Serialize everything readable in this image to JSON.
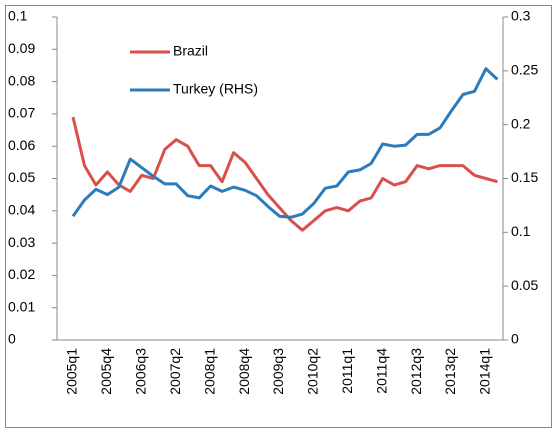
{
  "chart_data": {
    "type": "line",
    "categories": [
      "2005q1",
      null,
      null,
      "2005q4",
      null,
      null,
      "2006q3",
      null,
      null,
      "2007q2",
      null,
      null,
      "2008q1",
      null,
      null,
      "2008q4",
      null,
      null,
      "2009q3",
      null,
      null,
      "2010q2",
      null,
      null,
      "2011q1",
      null,
      null,
      "2011q4",
      null,
      null,
      "2012q3",
      null,
      null,
      "2013q2",
      null,
      null,
      "2014q1",
      null
    ],
    "series": [
      {
        "name": "Brazil",
        "color": "#d9504b",
        "values": [
          0.069,
          0.054,
          0.048,
          0.052,
          0.048,
          0.046,
          0.051,
          0.05,
          0.059,
          0.062,
          0.06,
          0.054,
          0.054,
          0.049,
          0.058,
          0.055,
          0.05,
          0.045,
          0.041,
          0.037,
          0.034,
          0.037,
          0.04,
          0.041,
          0.04,
          0.043,
          0.044,
          0.05,
          0.048,
          0.049,
          0.054,
          0.053,
          0.054,
          0.054,
          0.054,
          0.051,
          0.05,
          0.049
        ]
      },
      {
        "name": "Turkey (RHS)",
        "color": "#2b7bbd",
        "axis": "y2",
        "values": [
          0.115,
          0.13,
          0.14,
          0.135,
          0.142,
          0.168,
          0.16,
          0.152,
          0.145,
          0.145,
          0.134,
          0.132,
          0.143,
          0.138,
          0.142,
          0.139,
          0.134,
          0.124,
          0.115,
          0.114,
          0.117,
          0.127,
          0.141,
          0.143,
          0.156,
          0.158,
          0.164,
          0.182,
          0.18,
          0.181,
          0.191,
          0.191,
          0.197,
          0.213,
          0.228,
          0.231,
          0.252,
          0.242
        ]
      }
    ],
    "ylim": [
      0,
      0.1
    ],
    "yticks": [
      0,
      0.01,
      0.02,
      0.03,
      0.04,
      0.05,
      0.06,
      0.07,
      0.08,
      0.09,
      0.1
    ],
    "y2lim": [
      0,
      0.3
    ],
    "y2ticks": [
      0,
      0.05,
      0.1,
      0.15,
      0.2,
      0.25,
      0.3
    ],
    "legend": "upper left",
    "grid": false
  }
}
